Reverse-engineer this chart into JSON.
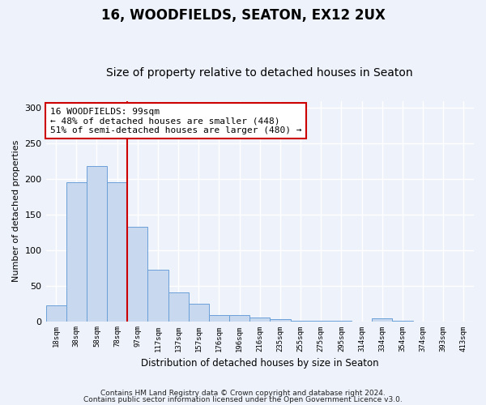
{
  "title": "16, WOODFIELDS, SEATON, EX12 2UX",
  "subtitle": "Size of property relative to detached houses in Seaton",
  "xlabel": "Distribution of detached houses by size in Seaton",
  "ylabel": "Number of detached properties",
  "footnote1": "Contains HM Land Registry data © Crown copyright and database right 2024.",
  "footnote2": "Contains public sector information licensed under the Open Government Licence v3.0.",
  "bar_color": "#c8d8ef",
  "bar_edge_color": "#6a9fd8",
  "vline_color": "#cc0000",
  "vline_x": 3.5,
  "annotation_text": "16 WOODFIELDS: 99sqm\n← 48% of detached houses are smaller (448)\n51% of semi-detached houses are larger (480) →",
  "annotation_box_color": "#ffffff",
  "annotation_box_edge": "#cc0000",
  "categories": [
    "18sqm",
    "38sqm",
    "58sqm",
    "78sqm",
    "97sqm",
    "117sqm",
    "137sqm",
    "157sqm",
    "176sqm",
    "196sqm",
    "216sqm",
    "235sqm",
    "255sqm",
    "275sqm",
    "295sqm",
    "314sqm",
    "334sqm",
    "354sqm",
    "374sqm",
    "393sqm",
    "413sqm"
  ],
  "values": [
    22,
    195,
    218,
    195,
    133,
    72,
    40,
    25,
    9,
    9,
    5,
    3,
    1,
    1,
    1,
    0,
    4,
    1,
    0,
    0,
    0
  ],
  "ylim": [
    0,
    310
  ],
  "yticks": [
    0,
    50,
    100,
    150,
    200,
    250,
    300
  ],
  "background_color": "#eef2fb",
  "plot_bg_color": "#eef2fb",
  "title_fontsize": 12,
  "subtitle_fontsize": 10,
  "grid_color": "#ffffff",
  "figsize": [
    6.0,
    5.0
  ],
  "dpi": 100
}
